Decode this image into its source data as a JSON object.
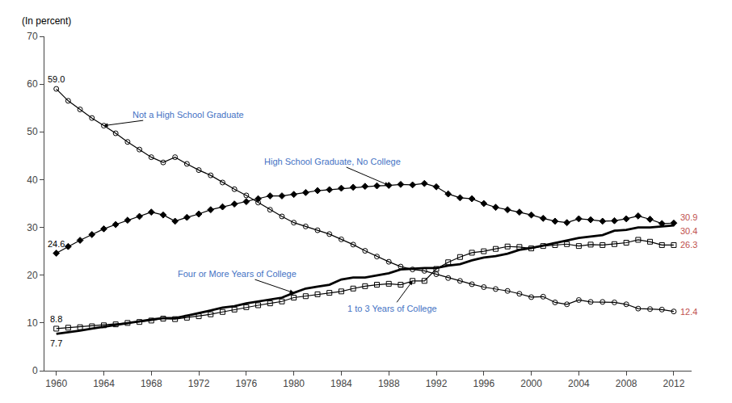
{
  "chart_data": {
    "type": "line",
    "ylabel": "(In percent)",
    "x": [
      1960,
      1961,
      1962,
      1963,
      1964,
      1965,
      1966,
      1967,
      1968,
      1969,
      1970,
      1971,
      1972,
      1973,
      1974,
      1975,
      1976,
      1977,
      1978,
      1979,
      1980,
      1981,
      1982,
      1983,
      1984,
      1985,
      1986,
      1987,
      1988,
      1989,
      1990,
      1991,
      1992,
      1993,
      1994,
      1995,
      1996,
      1997,
      1998,
      1999,
      2000,
      2001,
      2002,
      2003,
      2004,
      2005,
      2006,
      2007,
      2008,
      2009,
      2010,
      2011,
      2012
    ],
    "xlim": [
      1959,
      2013.5
    ],
    "xticks": [
      1960,
      1964,
      1968,
      1972,
      1976,
      1980,
      1984,
      1988,
      1992,
      1996,
      2000,
      2004,
      2008,
      2012
    ],
    "ylim": [
      0,
      70
    ],
    "yticks": [
      0,
      10,
      20,
      30,
      40,
      50,
      60,
      70
    ],
    "grid": false,
    "data_labels": true,
    "start_label_color": "black",
    "end_label_color": "#C0504D",
    "annotations": [
      {
        "text": "Not a High School Graduate",
        "color": "#4472C4"
      },
      {
        "text": "High School Graduate, No College",
        "color": "#4472C4"
      },
      {
        "text": "Four or More Years of College",
        "color": "#4472C4"
      },
      {
        "text": "1 to 3 Years of College",
        "color": "#4472C4"
      }
    ],
    "series": [
      {
        "color": "black",
        "marker": "circle-open",
        "line_style": "solid",
        "values": [
          59.0,
          56.5,
          54.7,
          52.9,
          51.3,
          49.7,
          47.9,
          46.3,
          44.7,
          43.6,
          44.7,
          43.3,
          42.0,
          40.9,
          39.4,
          38.0,
          36.7,
          35.2,
          33.7,
          32.3,
          31.0,
          30.2,
          29.4,
          28.6,
          27.5,
          26.4,
          25.1,
          23.9,
          22.8,
          21.8,
          21.2,
          20.9,
          20.2,
          19.4,
          18.8,
          18.1,
          17.5,
          17.1,
          16.7,
          16.1,
          15.4,
          15.5,
          14.3,
          13.9,
          14.8,
          14.4,
          14.4,
          14.3,
          13.9,
          13.0,
          12.9,
          12.8,
          12.4
        ],
        "value_labels": [
          "59.0",
          null,
          null,
          null,
          null,
          null,
          null,
          null,
          null,
          null,
          null,
          null,
          null,
          null,
          null,
          null,
          null,
          null,
          null,
          null,
          null,
          null,
          null,
          null,
          null,
          null,
          null,
          null,
          null,
          null,
          null,
          null,
          null,
          null,
          null,
          null,
          null,
          null,
          null,
          null,
          null,
          null,
          null,
          null,
          null,
          null,
          null,
          null,
          null,
          null,
          null,
          null,
          "12.4"
        ]
      },
      {
        "color": "black",
        "marker": "diamond",
        "line_style": "solid",
        "values": [
          24.6,
          26.0,
          27.3,
          28.5,
          29.7,
          30.6,
          31.5,
          32.3,
          33.2,
          32.6,
          31.3,
          32.1,
          32.8,
          33.7,
          34.3,
          34.9,
          35.4,
          36.0,
          36.6,
          36.6,
          36.9,
          37.3,
          37.7,
          37.9,
          38.2,
          38.4,
          38.6,
          38.7,
          38.8,
          39.0,
          38.9,
          39.2,
          38.5,
          37.0,
          36.2,
          36.0,
          35.0,
          34.2,
          33.7,
          33.2,
          32.6,
          31.9,
          31.3,
          31.0,
          31.8,
          31.6,
          31.3,
          31.4,
          31.8,
          32.4,
          31.7,
          30.8,
          30.9
        ],
        "value_labels": [
          "24.6",
          null,
          null,
          null,
          null,
          null,
          null,
          null,
          null,
          null,
          null,
          null,
          null,
          null,
          null,
          null,
          null,
          null,
          null,
          null,
          null,
          null,
          null,
          null,
          null,
          null,
          null,
          null,
          null,
          null,
          null,
          null,
          null,
          null,
          null,
          null,
          null,
          null,
          null,
          null,
          null,
          null,
          null,
          null,
          null,
          null,
          null,
          null,
          null,
          null,
          null,
          null,
          "30.9"
        ]
      },
      {
        "color": "black",
        "marker": "square-open",
        "line_style": "solid",
        "values": [
          8.8,
          9.0,
          9.1,
          9.3,
          9.5,
          9.7,
          10.0,
          10.2,
          10.5,
          10.9,
          10.8,
          11.1,
          11.4,
          11.8,
          12.3,
          12.8,
          13.3,
          13.7,
          14.1,
          14.5,
          15.3,
          15.6,
          16.0,
          16.3,
          16.6,
          17.2,
          17.7,
          18.0,
          18.2,
          18.0,
          18.8,
          18.8,
          21.3,
          22.7,
          23.8,
          24.7,
          25.0,
          25.5,
          26.0,
          25.9,
          25.6,
          26.1,
          26.3,
          26.5,
          26.1,
          26.4,
          26.3,
          26.5,
          26.8,
          27.4,
          27.0,
          26.3,
          26.3
        ],
        "value_labels": [
          "8.8",
          null,
          null,
          null,
          null,
          null,
          null,
          null,
          null,
          null,
          null,
          null,
          null,
          null,
          null,
          null,
          null,
          null,
          null,
          null,
          null,
          null,
          null,
          null,
          null,
          null,
          null,
          null,
          null,
          null,
          null,
          null,
          null,
          null,
          null,
          null,
          null,
          null,
          null,
          null,
          null,
          null,
          null,
          null,
          null,
          null,
          null,
          null,
          null,
          null,
          null,
          null,
          "26.3"
        ]
      },
      {
        "color": "black",
        "marker": "none",
        "line_style": "solid",
        "values": [
          7.7,
          8.0,
          8.4,
          8.8,
          9.2,
          9.6,
          9.9,
          10.3,
          10.7,
          11.0,
          11.0,
          11.5,
          12.0,
          12.6,
          13.2,
          13.5,
          14.1,
          14.5,
          14.9,
          15.3,
          16.3,
          17.2,
          17.6,
          18.0,
          19.1,
          19.5,
          19.5,
          20.0,
          20.4,
          21.2,
          21.4,
          21.5,
          21.5,
          22.0,
          22.3,
          23.1,
          23.7,
          24.0,
          24.5,
          25.3,
          25.7,
          26.2,
          26.8,
          27.3,
          27.8,
          28.1,
          28.4,
          29.3,
          29.5,
          30.0,
          30.0,
          30.2,
          30.4
        ],
        "value_labels": [
          "7.7",
          null,
          null,
          null,
          null,
          null,
          null,
          null,
          null,
          null,
          null,
          null,
          null,
          null,
          null,
          null,
          null,
          null,
          null,
          null,
          null,
          null,
          null,
          null,
          null,
          null,
          null,
          null,
          null,
          null,
          null,
          null,
          null,
          null,
          null,
          null,
          null,
          null,
          null,
          null,
          null,
          null,
          null,
          null,
          null,
          null,
          null,
          null,
          null,
          null,
          null,
          null,
          "30.4"
        ]
      }
    ]
  }
}
